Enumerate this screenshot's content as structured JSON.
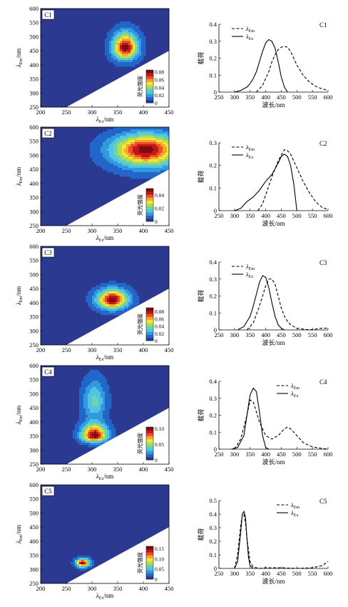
{
  "colorbar_title": "荧光强度",
  "colorbar_colors": [
    "#2b3990",
    "#2166c8",
    "#3399dd",
    "#4fc3e8",
    "#6fd2a8",
    "#b6dc4a",
    "#f1e73a",
    "#f7a52d",
    "#ec4e26",
    "#c2161d",
    "#7f0b0b"
  ],
  "series_colors": {
    "em": "#000000",
    "ex": "#000000"
  },
  "chart_data": [
    {
      "type": "contour",
      "label": "C1",
      "xlabel": "λEx/nm",
      "ylabel": "λEm/nm",
      "xlim": [
        200,
        450
      ],
      "ylim": [
        250,
        600
      ],
      "xticks": [
        200,
        250,
        300,
        350,
        400,
        450
      ],
      "yticks": [
        250,
        300,
        350,
        400,
        450,
        500,
        550,
        600
      ],
      "peak": {
        "ex": 365,
        "em": 460,
        "intensity": 0.085
      },
      "spread": {
        "ex": 24,
        "em_up": 55,
        "em_down": 40
      },
      "secondary_peak": null,
      "colorbar_ticks": [
        "0",
        "0.02",
        "0.04",
        "0.06",
        "0.08"
      ],
      "colorbar_max": 0.085
    },
    {
      "type": "line",
      "label": "C1",
      "xlabel": "波长/nm",
      "ylabel": "载荷",
      "xlim": [
        250,
        600
      ],
      "ylim": [
        0,
        0.4
      ],
      "xticks": [
        250,
        300,
        350,
        400,
        450,
        500,
        550,
        600
      ],
      "yticks": [
        "0",
        "0.1",
        "0.2",
        "0.3",
        "0.4"
      ],
      "series": [
        {
          "name": "λEm",
          "style": "dashed",
          "x": [
            370,
            390,
            410,
            420,
            430,
            440,
            450,
            460,
            470,
            480,
            490,
            500,
            520,
            540,
            560,
            580,
            600
          ],
          "y": [
            0.0,
            0.04,
            0.12,
            0.18,
            0.22,
            0.25,
            0.265,
            0.27,
            0.265,
            0.24,
            0.2,
            0.16,
            0.1,
            0.06,
            0.035,
            0.02,
            0.01
          ]
        },
        {
          "name": "λEx",
          "style": "solid",
          "x": [
            300,
            320,
            340,
            350,
            360,
            370,
            380,
            390,
            400,
            410,
            420,
            430,
            440,
            450,
            460,
            470
          ],
          "y": [
            0.0,
            0.01,
            0.03,
            0.05,
            0.08,
            0.12,
            0.18,
            0.24,
            0.29,
            0.31,
            0.3,
            0.26,
            0.18,
            0.09,
            0.03,
            0.0
          ]
        }
      ]
    },
    {
      "type": "contour",
      "label": "C2",
      "xlabel": "λEx/nm",
      "ylabel": "λEm/nm",
      "xlim": [
        200,
        450
      ],
      "ylim": [
        250,
        600
      ],
      "xticks": [
        200,
        250,
        300,
        350,
        400,
        450
      ],
      "yticks": [
        250,
        300,
        350,
        400,
        450,
        500,
        550,
        600
      ],
      "peak": {
        "ex": 405,
        "em": 520,
        "intensity": 0.05
      },
      "spread": {
        "ex": 65,
        "em_up": 55,
        "em_down": 60
      },
      "secondary_peak": null,
      "colorbar_ticks": [
        "0",
        "0.02",
        "0.04"
      ],
      "colorbar_max": 0.05
    },
    {
      "type": "line",
      "label": "C2",
      "xlabel": "波长/nm",
      "ylabel": "载荷",
      "xlim": [
        250,
        600
      ],
      "ylim": [
        0,
        0.3
      ],
      "xticks": [
        250,
        300,
        350,
        400,
        450,
        500,
        550,
        600
      ],
      "yticks": [
        "0",
        "0.1",
        "0.2",
        "0.3"
      ],
      "series": [
        {
          "name": "λEm",
          "style": "dashed",
          "x": [
            375,
            390,
            400,
            420,
            440,
            460,
            470,
            480,
            500,
            520,
            540,
            560,
            580,
            600
          ],
          "y": [
            0.0,
            0.03,
            0.07,
            0.15,
            0.22,
            0.27,
            0.265,
            0.25,
            0.19,
            0.13,
            0.08,
            0.04,
            0.015,
            0.005
          ]
        },
        {
          "name": "λEx",
          "style": "solid",
          "x": [
            300,
            320,
            340,
            360,
            380,
            400,
            420,
            440,
            450,
            460,
            470,
            480,
            490,
            500
          ],
          "y": [
            0.0,
            0.01,
            0.04,
            0.06,
            0.09,
            0.13,
            0.16,
            0.21,
            0.24,
            0.25,
            0.24,
            0.2,
            0.12,
            0.0
          ]
        }
      ]
    },
    {
      "type": "contour",
      "label": "C3",
      "xlabel": "λEx/nm",
      "ylabel": "λEm/nm",
      "xlim": [
        200,
        450
      ],
      "ylim": [
        250,
        600
      ],
      "xticks": [
        200,
        250,
        300,
        350,
        400,
        450
      ],
      "yticks": [
        250,
        300,
        350,
        400,
        450,
        500,
        550,
        600
      ],
      "peak": {
        "ex": 340,
        "em": 410,
        "intensity": 0.09
      },
      "spread": {
        "ex": 30,
        "em_up": 38,
        "em_down": 32
      },
      "secondary_peak": null,
      "colorbar_ticks": [
        "0",
        "0.02",
        "0.04",
        "0.06",
        "0.08"
      ],
      "colorbar_max": 0.09
    },
    {
      "type": "line",
      "label": "C3",
      "xlabel": "波长/nm",
      "ylabel": "载荷",
      "xlim": [
        250,
        600
      ],
      "ylim": [
        0,
        0.4
      ],
      "xticks": [
        250,
        300,
        350,
        400,
        450,
        500,
        550,
        600
      ],
      "yticks": [
        "0",
        "0.1",
        "0.2",
        "0.3",
        "0.4"
      ],
      "series": [
        {
          "name": "λEm",
          "style": "dashed",
          "x": [
            340,
            360,
            380,
            400,
            410,
            420,
            430,
            440,
            450,
            460,
            470,
            480,
            500,
            520,
            540,
            560,
            580,
            600
          ],
          "y": [
            0.0,
            0.04,
            0.14,
            0.26,
            0.3,
            0.3,
            0.27,
            0.2,
            0.13,
            0.08,
            0.05,
            0.03,
            0.01,
            0.005,
            0.0,
            0.005,
            0.01,
            0.01
          ]
        },
        {
          "name": "λEx",
          "style": "solid",
          "x": [
            310,
            330,
            350,
            360,
            370,
            380,
            390,
            400,
            410,
            420,
            430,
            440,
            450,
            460
          ],
          "y": [
            0.0,
            0.02,
            0.08,
            0.14,
            0.21,
            0.28,
            0.32,
            0.31,
            0.25,
            0.16,
            0.08,
            0.03,
            0.01,
            0.0
          ]
        }
      ]
    },
    {
      "type": "contour",
      "label": "C4",
      "xlabel": "λEx/nm",
      "ylabel": "λEm/nm",
      "xlim": [
        200,
        450
      ],
      "ylim": [
        250,
        600
      ],
      "xticks": [
        200,
        250,
        300,
        350,
        400,
        450
      ],
      "yticks": [
        250,
        300,
        350,
        400,
        450,
        500,
        550,
        600
      ],
      "peak": {
        "ex": 305,
        "em": 350,
        "intensity": 0.105
      },
      "spread": {
        "ex": 25,
        "em_up": 45,
        "em_down": 22
      },
      "secondary_peak": {
        "ex": 305,
        "em": 470,
        "intensity": 0.04,
        "spread": {
          "ex": 22,
          "em_up": 80,
          "em_down": 55
        }
      },
      "colorbar_ticks": [
        "0",
        "0.05",
        "0.10"
      ],
      "colorbar_max": 0.105
    },
    {
      "type": "line",
      "label": "C4",
      "xlabel": "波长/nm",
      "ylabel": "载荷",
      "xlim": [
        250,
        600
      ],
      "ylim": [
        0,
        0.4
      ],
      "xticks": [
        250,
        300,
        350,
        400,
        450,
        500,
        550,
        600
      ],
      "yticks": [
        "0",
        "0.1",
        "0.2",
        "0.3",
        "0.4"
      ],
      "series": [
        {
          "name": "λEm",
          "style": "dashed",
          "x": [
            300,
            320,
            340,
            350,
            360,
            370,
            380,
            400,
            420,
            440,
            460,
            470,
            480,
            500,
            520,
            540,
            560,
            580,
            600
          ],
          "y": [
            0.0,
            0.06,
            0.2,
            0.29,
            0.28,
            0.22,
            0.16,
            0.08,
            0.06,
            0.08,
            0.12,
            0.13,
            0.12,
            0.08,
            0.04,
            0.02,
            0.01,
            0.005,
            0.0
          ]
        },
        {
          "name": "λEx",
          "style": "solid",
          "x": [
            290,
            310,
            330,
            340,
            350,
            360,
            370,
            380,
            390,
            400,
            410
          ],
          "y": [
            0.0,
            0.01,
            0.08,
            0.2,
            0.32,
            0.36,
            0.34,
            0.22,
            0.08,
            0.01,
            0.0
          ]
        }
      ]
    },
    {
      "type": "contour",
      "label": "C5",
      "xlabel": "λEx/nm",
      "ylabel": "λEm/nm",
      "xlim": [
        200,
        450
      ],
      "ylim": [
        250,
        600
      ],
      "xticks": [
        200,
        250,
        300,
        350,
        400,
        450
      ],
      "yticks": [
        250,
        300,
        350,
        400,
        450,
        500,
        550,
        600
      ],
      "peak": {
        "ex": 282,
        "em": 322,
        "intensity": 0.16
      },
      "spread": {
        "ex": 13,
        "em_up": 16,
        "em_down": 14
      },
      "secondary_peak": null,
      "colorbar_ticks": [
        "0",
        "0.05",
        "0.10",
        "0.15"
      ],
      "colorbar_max": 0.16
    },
    {
      "type": "line",
      "label": "C5",
      "xlabel": "波长/nm",
      "ylabel": "载荷",
      "xlim": [
        250,
        600
      ],
      "ylim": [
        0,
        0.5
      ],
      "xticks": [
        250,
        300,
        350,
        400,
        450,
        500,
        550,
        600
      ],
      "yticks": [
        "0",
        "0.1",
        "0.2",
        "0.3",
        "0.4",
        "0.5"
      ],
      "series": [
        {
          "name": "λEm",
          "style": "dashed",
          "x": [
            300,
            310,
            320,
            325,
            330,
            335,
            340,
            350,
            360,
            380,
            400,
            450,
            500,
            550,
            580,
            600
          ],
          "y": [
            0.0,
            0.1,
            0.32,
            0.39,
            0.4,
            0.34,
            0.22,
            0.05,
            0.01,
            0.0,
            0.005,
            0.005,
            0.0,
            0.005,
            0.02,
            0.05
          ]
        },
        {
          "name": "λEx",
          "style": "solid",
          "x": [
            300,
            310,
            320,
            325,
            330,
            335,
            340,
            345,
            350,
            360
          ],
          "y": [
            0.0,
            0.05,
            0.27,
            0.4,
            0.42,
            0.38,
            0.22,
            0.08,
            0.02,
            0.0
          ]
        }
      ]
    }
  ]
}
